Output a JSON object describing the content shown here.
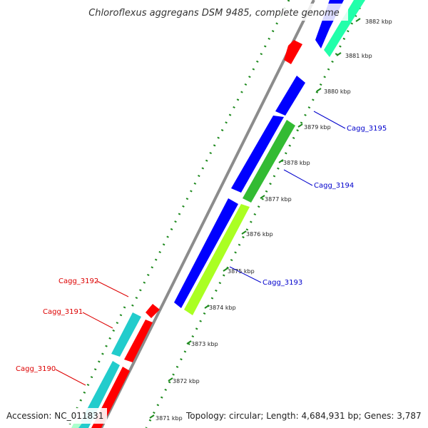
{
  "header": {
    "title": "Chloroflexus aggregans DSM 9485, complete genome"
  },
  "footer": {
    "accession": "Accession: NC_011831",
    "summary": "Topology: circular; Length: 4,684,931 bp; Genes: 3,787"
  },
  "ticks": [
    "3871 kbp",
    "3872 kbp",
    "3873 kbp",
    "3874 kbp",
    "3875 kbp",
    "3876 kbp",
    "3877 kbp",
    "3878 kbp",
    "3879 kbp",
    "3880 kbp",
    "3881 kbp",
    "3882 kbp"
  ],
  "gene_labels": {
    "cagg_3195": "Cagg_3195",
    "cagg_3194": "Cagg_3194",
    "cagg_3193": "Cagg_3193",
    "cagg_3192": "Cagg_3192",
    "cagg_3191": "Cagg_3191",
    "cagg_3190": "Cagg_3190"
  },
  "colors": {
    "backbone": "#8c8c8c",
    "dotted_track": "#1e8a1e",
    "forward_label": "#0000cc",
    "reverse_label": "#dd0000",
    "feature_blue": "#0000ff",
    "feature_green": "#33bb33",
    "feature_lime": "#aaff22",
    "feature_cyan": "#22cccc",
    "feature_red": "#ff0000",
    "feature_teal": "#22ffaa"
  }
}
